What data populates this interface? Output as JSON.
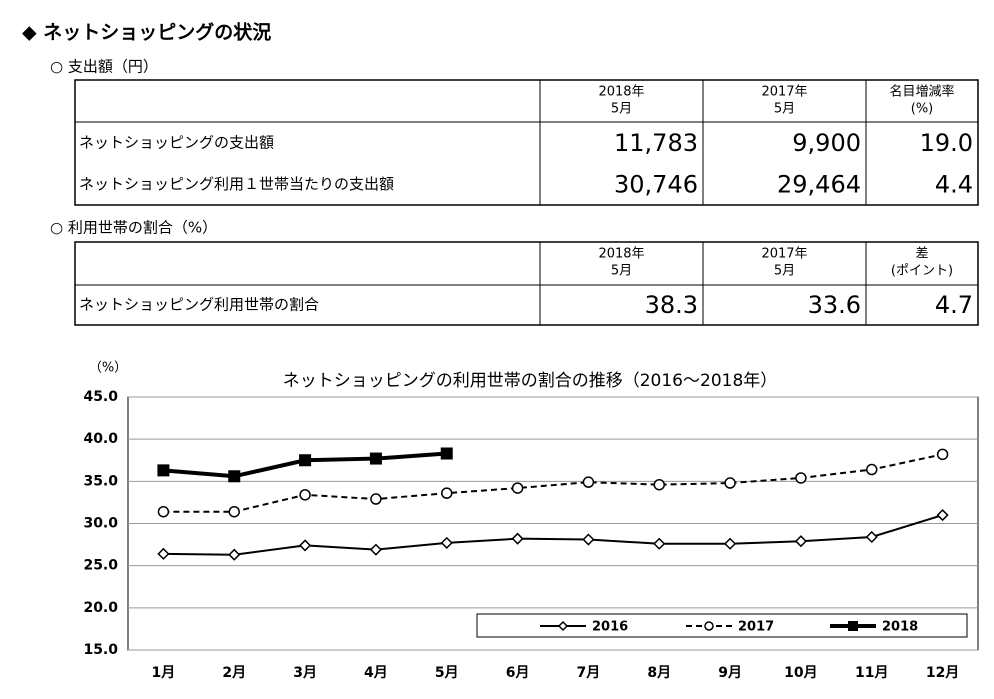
{
  "heading": "◆ ネットショッピングの状況",
  "section1": {
    "title": "○ 支出額（円）",
    "headers": [
      [
        "2018年",
        "5月"
      ],
      [
        "2017年",
        "5月"
      ],
      [
        "名目増減率",
        "(%)"
      ]
    ],
    "rows": [
      [
        "ネットショッピングの支出額",
        "11,783",
        "9,900",
        "19.0"
      ],
      [
        "ネットショッピング利用１世帯当たりの支出額",
        "30,746",
        "29,464",
        "4.4"
      ]
    ]
  },
  "section2": {
    "title": "○ 利用世帯の割合（%）",
    "headers": [
      [
        "2018年",
        "5月"
      ],
      [
        "2017年",
        "5月"
      ],
      [
        "差",
        "(ポイント)"
      ]
    ],
    "rows": [
      [
        "ネットショッピング利用世帯の割合",
        "38.3",
        "33.6",
        "4.7"
      ]
    ]
  },
  "chart_data": {
    "type": "line",
    "title": "ネットショッピングの利用世帯の割合の推移（2016～2018年）",
    "y_unit": "（%）",
    "categories": [
      "1月",
      "2月",
      "3月",
      "4月",
      "5月",
      "6月",
      "7月",
      "8月",
      "9月",
      "10月",
      "11月",
      "12月"
    ],
    "series": [
      {
        "name": "2016",
        "color": "#000000",
        "marker": "diamond",
        "dashed": false,
        "values": [
          26.4,
          26.3,
          27.4,
          26.9,
          27.7,
          28.2,
          28.1,
          27.6,
          27.6,
          27.9,
          28.4,
          31.0
        ]
      },
      {
        "name": "2017",
        "color": "#000000",
        "marker": "circle",
        "dashed": true,
        "values": [
          31.4,
          31.4,
          33.4,
          32.9,
          33.6,
          34.2,
          34.9,
          34.6,
          34.8,
          35.4,
          36.4,
          38.2
        ]
      },
      {
        "name": "2018",
        "color": "#000000",
        "marker": "square",
        "dashed": false,
        "values": [
          36.3,
          35.6,
          37.5,
          37.7,
          38.3,
          null,
          null,
          null,
          null,
          null,
          null,
          null
        ]
      }
    ],
    "ylim": [
      15,
      45
    ],
    "yticks": [
      {
        "value": 15,
        "label": "15.0"
      },
      {
        "value": 20,
        "label": "20.0"
      },
      {
        "value": 25,
        "label": "25.0"
      },
      {
        "value": 30,
        "label": "30.0"
      },
      {
        "value": 35,
        "label": "35.0"
      },
      {
        "value": 40,
        "label": "40.0"
      },
      {
        "value": 45,
        "label": "45.0"
      }
    ],
    "grid": true,
    "legend": "bottom-right"
  }
}
